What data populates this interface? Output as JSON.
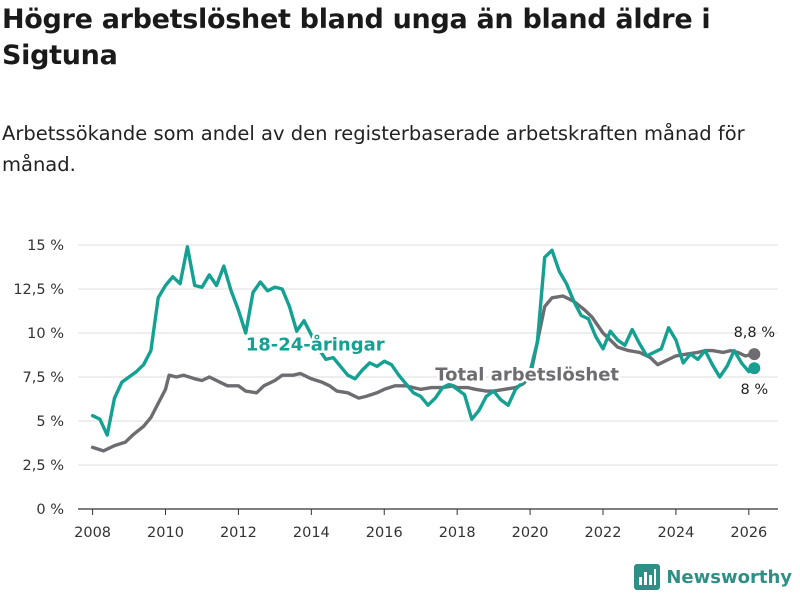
{
  "title": "Högre arbetslöshet bland unga än bland äldre i Sigtuna",
  "subtitle": "Arbetssökande som andel av den registerbaserade arbetskraften månad för månad.",
  "brand": {
    "name": "Newsworthy",
    "icon": "bar-chart-icon"
  },
  "chart_data": {
    "type": "line",
    "title": "Högre arbetslöshet bland unga än bland äldre i Sigtuna",
    "xlabel": "",
    "ylabel": "",
    "xlim": [
      2007.6,
      2026.8
    ],
    "ylim": [
      0,
      15
    ],
    "x_ticks": [
      2008,
      2010,
      2012,
      2014,
      2016,
      2018,
      2020,
      2022,
      2024,
      2026
    ],
    "x_tick_labels": [
      "2008",
      "2010",
      "2012",
      "2014",
      "2016",
      "2018",
      "2020",
      "2022",
      "2024",
      "2026"
    ],
    "y_ticks": [
      0,
      2.5,
      5,
      7.5,
      10,
      12.5,
      15
    ],
    "y_tick_labels": [
      "0 %",
      "2,5 %",
      "5 %",
      "7,5 %",
      "10 %",
      "12,5 %",
      "15 %"
    ],
    "grid": true,
    "series": [
      {
        "name": "Total arbetslöshet",
        "color": "#6e6c70",
        "end_label": "8,8 %",
        "points": [
          [
            2008.0,
            3.5
          ],
          [
            2008.3,
            3.3
          ],
          [
            2008.6,
            3.6
          ],
          [
            2008.9,
            3.8
          ],
          [
            2009.1,
            4.2
          ],
          [
            2009.4,
            4.7
          ],
          [
            2009.6,
            5.2
          ],
          [
            2009.8,
            6.0
          ],
          [
            2010.0,
            6.8
          ],
          [
            2010.1,
            7.6
          ],
          [
            2010.3,
            7.5
          ],
          [
            2010.5,
            7.6
          ],
          [
            2010.8,
            7.4
          ],
          [
            2011.0,
            7.3
          ],
          [
            2011.2,
            7.5
          ],
          [
            2011.5,
            7.2
          ],
          [
            2011.7,
            7.0
          ],
          [
            2012.0,
            7.0
          ],
          [
            2012.2,
            6.7
          ],
          [
            2012.5,
            6.6
          ],
          [
            2012.7,
            7.0
          ],
          [
            2013.0,
            7.3
          ],
          [
            2013.2,
            7.6
          ],
          [
            2013.5,
            7.6
          ],
          [
            2013.7,
            7.7
          ],
          [
            2014.0,
            7.4
          ],
          [
            2014.3,
            7.2
          ],
          [
            2014.5,
            7.0
          ],
          [
            2014.7,
            6.7
          ],
          [
            2015.0,
            6.6
          ],
          [
            2015.3,
            6.3
          ],
          [
            2015.5,
            6.4
          ],
          [
            2015.8,
            6.6
          ],
          [
            2016.0,
            6.8
          ],
          [
            2016.3,
            7.0
          ],
          [
            2016.6,
            7.0
          ],
          [
            2016.8,
            6.9
          ],
          [
            2017.0,
            6.8
          ],
          [
            2017.3,
            6.9
          ],
          [
            2017.6,
            6.9
          ],
          [
            2017.9,
            7.0
          ],
          [
            2018.0,
            6.9
          ],
          [
            2018.3,
            6.9
          ],
          [
            2018.5,
            6.8
          ],
          [
            2018.8,
            6.7
          ],
          [
            2019.0,
            6.7
          ],
          [
            2019.3,
            6.8
          ],
          [
            2019.6,
            6.9
          ],
          [
            2019.8,
            7.1
          ],
          [
            2020.0,
            7.5
          ],
          [
            2020.2,
            9.5
          ],
          [
            2020.4,
            11.5
          ],
          [
            2020.6,
            12.0
          ],
          [
            2020.9,
            12.1
          ],
          [
            2021.2,
            11.8
          ],
          [
            2021.5,
            11.3
          ],
          [
            2021.7,
            10.9
          ],
          [
            2022.0,
            10.0
          ],
          [
            2022.2,
            9.6
          ],
          [
            2022.4,
            9.2
          ],
          [
            2022.7,
            9.0
          ],
          [
            2023.0,
            8.9
          ],
          [
            2023.3,
            8.6
          ],
          [
            2023.5,
            8.2
          ],
          [
            2023.8,
            8.5
          ],
          [
            2024.0,
            8.7
          ],
          [
            2024.3,
            8.8
          ],
          [
            2024.6,
            8.9
          ],
          [
            2024.8,
            9.0
          ],
          [
            2025.0,
            9.0
          ],
          [
            2025.3,
            8.9
          ],
          [
            2025.5,
            9.0
          ],
          [
            2025.7,
            8.9
          ],
          [
            2025.9,
            8.7
          ],
          [
            2026.15,
            8.8
          ]
        ]
      },
      {
        "name": "18-24-åringar",
        "color": "#14a192",
        "end_label": "8 %",
        "points": [
          [
            2008.0,
            5.3
          ],
          [
            2008.2,
            5.1
          ],
          [
            2008.4,
            4.2
          ],
          [
            2008.6,
            6.3
          ],
          [
            2008.8,
            7.2
          ],
          [
            2009.0,
            7.5
          ],
          [
            2009.2,
            7.8
          ],
          [
            2009.4,
            8.2
          ],
          [
            2009.6,
            9.0
          ],
          [
            2009.8,
            12.0
          ],
          [
            2010.0,
            12.7
          ],
          [
            2010.2,
            13.2
          ],
          [
            2010.4,
            12.8
          ],
          [
            2010.6,
            14.9
          ],
          [
            2010.8,
            12.7
          ],
          [
            2011.0,
            12.6
          ],
          [
            2011.2,
            13.3
          ],
          [
            2011.4,
            12.7
          ],
          [
            2011.6,
            13.8
          ],
          [
            2011.8,
            12.4
          ],
          [
            2012.0,
            11.3
          ],
          [
            2012.2,
            10.0
          ],
          [
            2012.4,
            12.3
          ],
          [
            2012.6,
            12.9
          ],
          [
            2012.8,
            12.4
          ],
          [
            2013.0,
            12.6
          ],
          [
            2013.2,
            12.5
          ],
          [
            2013.4,
            11.5
          ],
          [
            2013.6,
            10.1
          ],
          [
            2013.8,
            10.7
          ],
          [
            2014.0,
            9.9
          ],
          [
            2014.2,
            9.1
          ],
          [
            2014.4,
            8.5
          ],
          [
            2014.6,
            8.6
          ],
          [
            2014.8,
            8.1
          ],
          [
            2015.0,
            7.6
          ],
          [
            2015.2,
            7.4
          ],
          [
            2015.4,
            7.9
          ],
          [
            2015.6,
            8.3
          ],
          [
            2015.8,
            8.1
          ],
          [
            2016.0,
            8.4
          ],
          [
            2016.2,
            8.2
          ],
          [
            2016.4,
            7.6
          ],
          [
            2016.6,
            7.1
          ],
          [
            2016.8,
            6.6
          ],
          [
            2017.0,
            6.4
          ],
          [
            2017.2,
            5.9
          ],
          [
            2017.4,
            6.3
          ],
          [
            2017.6,
            6.9
          ],
          [
            2017.8,
            7.1
          ],
          [
            2018.0,
            6.8
          ],
          [
            2018.2,
            6.5
          ],
          [
            2018.4,
            5.1
          ],
          [
            2018.6,
            5.6
          ],
          [
            2018.8,
            6.4
          ],
          [
            2019.0,
            6.7
          ],
          [
            2019.2,
            6.2
          ],
          [
            2019.4,
            5.9
          ],
          [
            2019.6,
            6.8
          ],
          [
            2019.8,
            7.2
          ],
          [
            2020.0,
            7.8
          ],
          [
            2020.2,
            9.5
          ],
          [
            2020.4,
            14.3
          ],
          [
            2020.6,
            14.7
          ],
          [
            2020.8,
            13.5
          ],
          [
            2021.0,
            12.8
          ],
          [
            2021.2,
            11.8
          ],
          [
            2021.4,
            11.0
          ],
          [
            2021.6,
            10.8
          ],
          [
            2021.8,
            9.8
          ],
          [
            2022.0,
            9.1
          ],
          [
            2022.2,
            10.1
          ],
          [
            2022.4,
            9.6
          ],
          [
            2022.6,
            9.3
          ],
          [
            2022.8,
            10.2
          ],
          [
            2023.0,
            9.4
          ],
          [
            2023.2,
            8.7
          ],
          [
            2023.4,
            8.9
          ],
          [
            2023.6,
            9.1
          ],
          [
            2023.8,
            10.3
          ],
          [
            2024.0,
            9.6
          ],
          [
            2024.2,
            8.3
          ],
          [
            2024.4,
            8.8
          ],
          [
            2024.6,
            8.5
          ],
          [
            2024.8,
            9.0
          ],
          [
            2025.0,
            8.2
          ],
          [
            2025.2,
            7.5
          ],
          [
            2025.4,
            8.1
          ],
          [
            2025.6,
            9.0
          ],
          [
            2025.8,
            8.3
          ],
          [
            2026.0,
            7.8
          ],
          [
            2026.15,
            8.0
          ]
        ]
      }
    ],
    "annotations": [
      {
        "text": "18-24-åringar",
        "color": "#14a192",
        "x": 2012.2,
        "y": 9.0
      },
      {
        "text": "Total arbetslöshet",
        "color": "#6e6c70",
        "x": 2017.4,
        "y": 7.3
      }
    ]
  }
}
